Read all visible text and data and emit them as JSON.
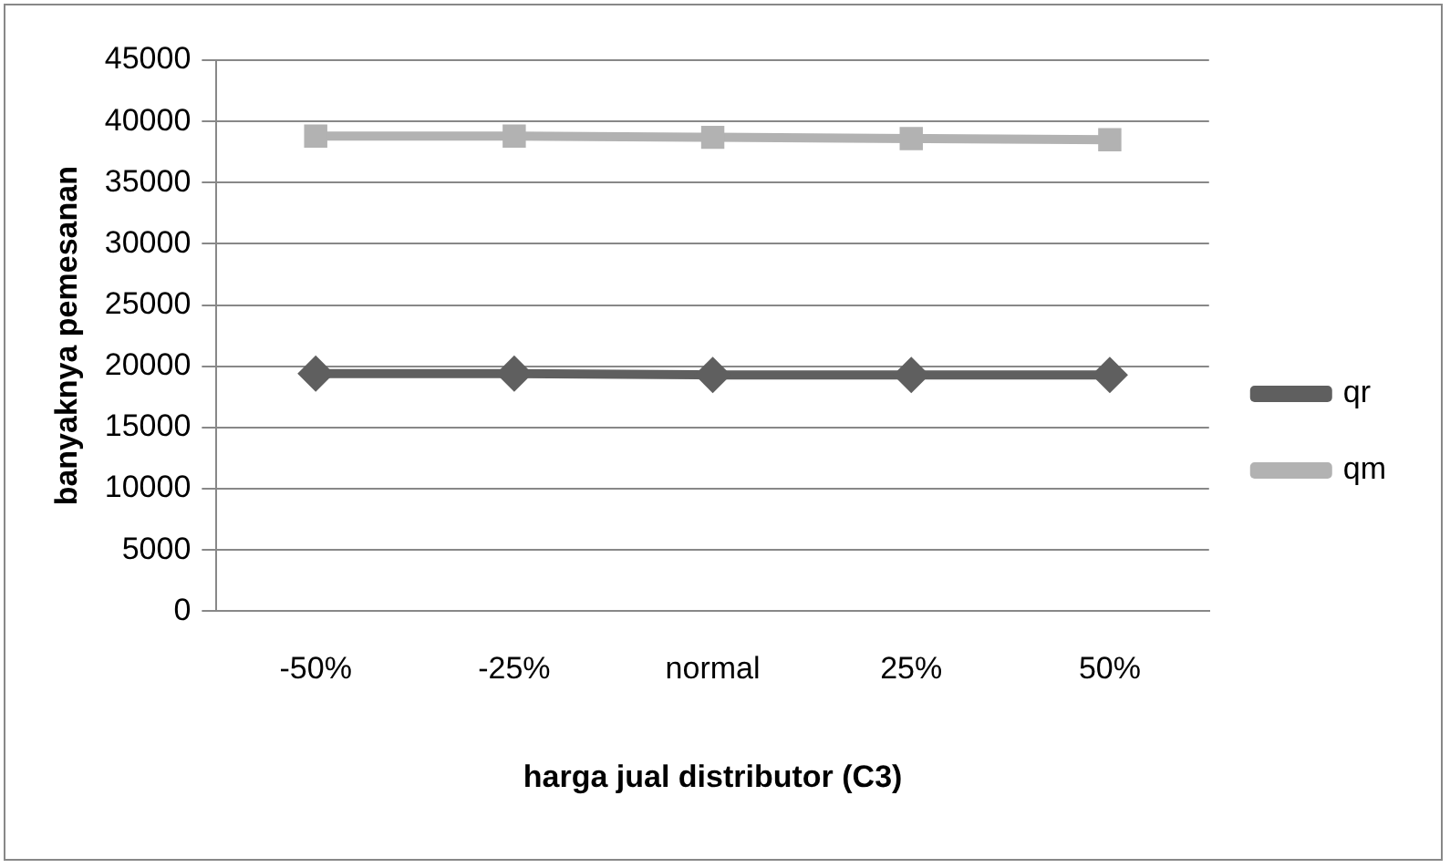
{
  "chart_data": {
    "type": "line",
    "xlabel": "harga jual distributor (C3)",
    "ylabel": "banyaknya pemesanan",
    "categories": [
      "-50%",
      "-25%",
      "normal",
      "25%",
      "50%"
    ],
    "series": [
      {
        "name": "qr",
        "color": "#5f5f5f",
        "values": [
          19400,
          19400,
          19300,
          19300,
          19300
        ],
        "marker": "diamond"
      },
      {
        "name": "qm",
        "color": "#b2b2b2",
        "values": [
          38800,
          38800,
          38700,
          38600,
          38500
        ],
        "marker": "square"
      }
    ],
    "ylim": [
      0,
      45000
    ],
    "yticks": [
      0,
      5000,
      10000,
      15000,
      20000,
      25000,
      30000,
      35000,
      40000,
      45000
    ],
    "grid": "y",
    "legend": "right",
    "line_style": "solid"
  }
}
